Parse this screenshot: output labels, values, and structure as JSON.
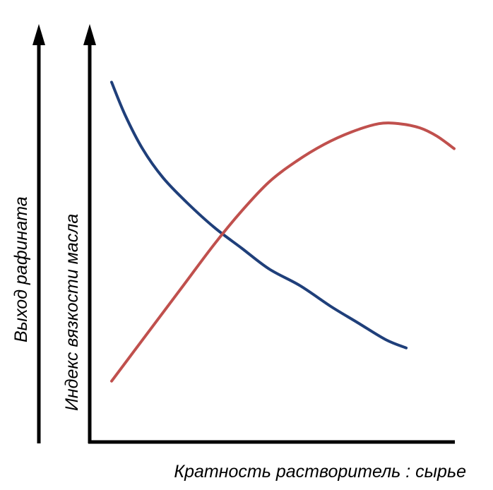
{
  "chart_data": {
    "type": "line",
    "title": "",
    "xlabel": "Кратность растворитель : сырье",
    "ylabels": [
      "Выход рафината",
      "Индекс вязкости масла"
    ],
    "xlim": [
      0,
      1
    ],
    "ylim": [
      0,
      1
    ],
    "grid": false,
    "legend": "none",
    "ticks": false,
    "series": [
      {
        "color": "#1f3f7a",
        "x": [
          0.0,
          0.04,
          0.09,
          0.15,
          0.22,
          0.3,
          0.38,
          0.46,
          0.55,
          0.64,
          0.72,
          0.8,
          0.86
        ],
        "y": [
          0.87,
          0.79,
          0.71,
          0.64,
          0.58,
          0.52,
          0.47,
          0.42,
          0.38,
          0.33,
          0.29,
          0.25,
          0.23
        ]
      },
      {
        "color": "#c0504d",
        "x": [
          0.0,
          0.1,
          0.2,
          0.3,
          0.38,
          0.46,
          0.54,
          0.62,
          0.7,
          0.78,
          0.84,
          0.9,
          0.95,
          1.0
        ],
        "y": [
          0.15,
          0.26,
          0.37,
          0.48,
          0.56,
          0.63,
          0.68,
          0.72,
          0.75,
          0.77,
          0.77,
          0.76,
          0.74,
          0.71
        ]
      }
    ]
  }
}
